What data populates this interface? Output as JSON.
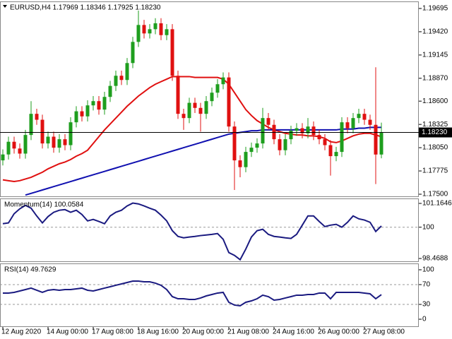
{
  "chart_data": [
    {
      "type": "candlestick",
      "title": "EURUSD,H4  1.17969 1.18346 1.17925 1.18230",
      "categories": [
        "12 Aug 2020",
        null,
        null,
        null,
        null,
        null,
        null,
        null,
        "14 Aug 00:00",
        null,
        null,
        null,
        null,
        null,
        null,
        null,
        "17 Aug 08:00",
        null,
        null,
        null,
        null,
        null,
        null,
        null,
        "18 Aug 16:00",
        null,
        null,
        null,
        null,
        null,
        null,
        null,
        "20 Aug 00:00",
        null,
        null,
        null,
        null,
        null,
        null,
        null,
        "21 Aug 08:00",
        null,
        null,
        null,
        null,
        null,
        null,
        null,
        "24 Aug 16:00",
        null,
        null,
        null,
        null,
        null,
        null,
        null,
        "26 Aug 00:00",
        null,
        null,
        null,
        null,
        null,
        null,
        null,
        "27 Aug 08:00",
        null,
        null,
        null
      ],
      "open": [
        1.179,
        1.1797,
        1.1812,
        1.1804,
        1.1798,
        1.182,
        1.1845,
        1.1838,
        1.181,
        1.1818,
        1.1805,
        1.1815,
        1.1808,
        1.1835,
        1.1848,
        1.1842,
        1.1855,
        1.186,
        1.185,
        1.1865,
        1.1878,
        1.189,
        1.1885,
        1.1905,
        1.193,
        1.195,
        1.194,
        1.1945,
        1.1952,
        1.1938,
        1.1945,
        1.189,
        1.1845,
        1.184,
        1.1858,
        1.1852,
        1.1845,
        1.186,
        1.187,
        1.188,
        1.1888,
        1.183,
        1.179,
        1.1782,
        1.18,
        1.1805,
        1.181,
        1.184,
        1.1832,
        1.1815,
        1.1802,
        1.1815,
        1.1825,
        1.1828,
        1.1822,
        1.183,
        1.182,
        1.1815,
        1.1808,
        1.1795,
        1.18,
        1.1835,
        1.1828,
        1.184,
        1.1845,
        1.1838,
        1.1832,
        1.17969
      ],
      "high": [
        1.1803,
        1.1818,
        1.1818,
        1.181,
        1.1826,
        1.186,
        1.1851,
        1.1844,
        1.1824,
        1.1824,
        1.1821,
        1.1821,
        1.1841,
        1.1854,
        1.1854,
        1.1861,
        1.1866,
        1.1866,
        1.1871,
        1.1884,
        1.1896,
        1.1896,
        1.1911,
        1.1936,
        1.1967,
        1.1956,
        1.1951,
        1.1958,
        1.1958,
        1.1951,
        1.1951,
        1.1896,
        1.1851,
        1.1864,
        1.1864,
        1.1858,
        1.1866,
        1.1876,
        1.1886,
        1.1894,
        1.1894,
        1.1836,
        1.1796,
        1.1806,
        1.1811,
        1.1816,
        1.1852,
        1.1846,
        1.1838,
        1.1821,
        1.1821,
        1.1831,
        1.1834,
        1.1834,
        1.184,
        1.1836,
        1.1826,
        1.1821,
        1.1814,
        1.1806,
        1.1841,
        1.1841,
        1.1846,
        1.1851,
        1.1851,
        1.1844,
        1.19,
        1.18346
      ],
      "low": [
        1.1784,
        1.1791,
        1.1798,
        1.1792,
        1.1792,
        1.1814,
        1.1832,
        1.1804,
        1.1804,
        1.1799,
        1.1799,
        1.1802,
        1.1802,
        1.1829,
        1.1836,
        1.1836,
        1.1849,
        1.1844,
        1.1844,
        1.1859,
        1.1872,
        1.1879,
        1.1879,
        1.1899,
        1.1924,
        1.1934,
        1.1934,
        1.1939,
        1.1932,
        1.1932,
        1.1884,
        1.1839,
        1.1826,
        1.1834,
        1.1846,
        1.1824,
        1.1839,
        1.1854,
        1.1864,
        1.1874,
        1.1824,
        1.1755,
        1.177,
        1.1776,
        1.1794,
        1.1799,
        1.1804,
        1.1826,
        1.1809,
        1.1796,
        1.1796,
        1.1809,
        1.1819,
        1.1816,
        1.1816,
        1.1814,
        1.1809,
        1.1802,
        1.1772,
        1.1789,
        1.1794,
        1.1822,
        1.1822,
        1.1834,
        1.1832,
        1.1826,
        1.1762,
        1.17925
      ],
      "close": [
        1.1797,
        1.1812,
        1.1804,
        1.1798,
        1.182,
        1.1845,
        1.1838,
        1.181,
        1.1818,
        1.1805,
        1.1815,
        1.1808,
        1.1835,
        1.1848,
        1.1842,
        1.1855,
        1.186,
        1.185,
        1.1865,
        1.1878,
        1.189,
        1.1885,
        1.1905,
        1.193,
        1.195,
        1.194,
        1.1945,
        1.1952,
        1.1938,
        1.1945,
        1.189,
        1.1845,
        1.184,
        1.1858,
        1.1852,
        1.1845,
        1.186,
        1.187,
        1.188,
        1.1888,
        1.183,
        1.179,
        1.1782,
        1.18,
        1.1805,
        1.181,
        1.184,
        1.1832,
        1.1815,
        1.1802,
        1.1815,
        1.1825,
        1.1828,
        1.1822,
        1.183,
        1.182,
        1.1815,
        1.1808,
        1.1795,
        1.18,
        1.1835,
        1.1828,
        1.184,
        1.1845,
        1.1838,
        1.1832,
        1.17969,
        1.1823
      ],
      "up_color": "#1e9e1e",
      "down_color": "#e01010",
      "lines": [
        {
          "color": "#e01010",
          "values": [
            1.1767,
            1.1766,
            1.1765,
            1.1766,
            1.1768,
            1.177,
            1.1773,
            1.1776,
            1.178,
            1.1783,
            1.1786,
            1.1788,
            1.1791,
            1.1795,
            1.1798,
            1.1802,
            1.181,
            1.1818,
            1.1826,
            1.1833,
            1.184,
            1.1847,
            1.1854,
            1.186,
            1.1866,
            1.1871,
            1.1876,
            1.188,
            1.1883,
            1.1886,
            1.1889,
            1.1889,
            1.1889,
            1.1889,
            1.1888,
            1.1888,
            1.1888,
            1.1888,
            1.1888,
            1.1886,
            1.188,
            1.187,
            1.186,
            1.185,
            1.1843,
            1.1837,
            1.1833,
            1.1829,
            1.1826,
            1.1824,
            1.1822,
            1.1821,
            1.182,
            1.182,
            1.1819,
            1.1819,
            1.1818,
            1.1816,
            1.1812,
            1.1811,
            1.1813,
            1.1816,
            1.1819,
            1.1821,
            1.1822,
            1.1822,
            1.182,
            1.1818
          ]
        },
        {
          "color": "#1010b0",
          "values": [
            null,
            null,
            null,
            null,
            1.1749,
            1.1751,
            1.1753,
            1.1755,
            1.1757,
            1.1759,
            1.1761,
            1.1763,
            1.1765,
            1.1767,
            1.1769,
            1.1771,
            1.1773,
            1.1775,
            1.1777,
            1.1779,
            1.1781,
            1.1783,
            1.1785,
            1.1787,
            1.1789,
            1.1791,
            1.1793,
            1.1795,
            1.1797,
            1.1799,
            1.1801,
            1.1803,
            1.1805,
            1.1807,
            1.1809,
            1.1811,
            1.1813,
            1.1815,
            1.1817,
            1.1819,
            1.1821,
            1.1822,
            1.1823,
            1.1824,
            1.1825,
            1.1825,
            1.1826,
            1.1826,
            1.1826,
            1.1826,
            1.1826,
            1.1826,
            1.1826,
            1.1826,
            1.1826,
            1.1826,
            1.1826,
            1.1826,
            1.1826,
            1.1826,
            1.1827,
            1.1827,
            1.1827,
            1.1828,
            1.1828,
            1.1829,
            1.1829,
            1.1829
          ]
        }
      ],
      "ylim": [
        1.17475,
        1.1977
      ],
      "yticks": [
        1.19695,
        {
          "value": 1.1942,
          "label": "1.19420"
        },
        1.19145,
        {
          "value": 1.1887,
          "label": "1.18870"
        },
        {
          "value": 1.186,
          "label": "1.18600"
        },
        1.18325,
        {
          "value": 1.1805,
          "label": "1.18050"
        },
        1.17775,
        {
          "value": 1.175,
          "label": "1.17500"
        }
      ],
      "price_line": {
        "value": 1.1823,
        "label": "1.18230"
      }
    },
    {
      "type": "line",
      "title": "Momentum(14) 100.0584",
      "color": "#1a1a80",
      "values": [
        100.17,
        100.21,
        100.66,
        100.9,
        101.07,
        100.93,
        100.55,
        100.21,
        100.52,
        100.73,
        100.83,
        100.86,
        100.73,
        100.83,
        100.62,
        100.31,
        100.38,
        100.28,
        100.17,
        100.55,
        100.73,
        100.83,
        101.04,
        101.18,
        101.14,
        101.04,
        100.93,
        100.83,
        100.59,
        100.31,
        99.83,
        99.55,
        99.48,
        99.52,
        99.55,
        99.59,
        99.62,
        99.65,
        99.69,
        99.41,
        98.76,
        98.62,
        98.41,
        98.93,
        99.52,
        99.83,
        99.9,
        99.65,
        99.55,
        99.52,
        99.48,
        99.45,
        99.65,
        100.1,
        100.55,
        100.55,
        100.28,
        100.03,
        100.1,
        100.14,
        100.0,
        100.24,
        100.55,
        100.41,
        100.35,
        100.24,
        99.79,
        100.0584
      ],
      "ylim": [
        98.331,
        101.372
      ],
      "yticks": [
        101.1646,
        100,
        98.4688
      ],
      "levels": [
        100
      ]
    },
    {
      "type": "line",
      "title": "RSI(14) 49.7629",
      "color": "#1a1a80",
      "values": [
        52.9,
        52.9,
        54.3,
        57.1,
        60.0,
        62.9,
        58.6,
        54.3,
        58.6,
        60.0,
        58.6,
        60.0,
        60.0,
        61.4,
        62.9,
        58.6,
        57.1,
        60.0,
        62.9,
        65.7,
        68.6,
        71.4,
        74.3,
        77.1,
        77.1,
        75.7,
        75.7,
        72.9,
        68.6,
        60.0,
        45.7,
        41.4,
        41.4,
        40.0,
        40.0,
        42.9,
        47.1,
        50.0,
        52.9,
        54.3,
        34.3,
        28.6,
        27.1,
        34.3,
        37.1,
        41.4,
        48.6,
        45.7,
        38.6,
        40.0,
        42.9,
        45.7,
        48.6,
        48.6,
        50.0,
        50.0,
        52.9,
        52.9,
        41.4,
        54.3,
        54.3,
        54.3,
        54.3,
        54.3,
        52.9,
        51.4,
        41.4,
        49.7629
      ],
      "ylim": [
        -14.3,
        111.4
      ],
      "yticks": [
        100,
        70,
        30,
        0
      ],
      "levels": [
        70,
        30
      ]
    }
  ]
}
